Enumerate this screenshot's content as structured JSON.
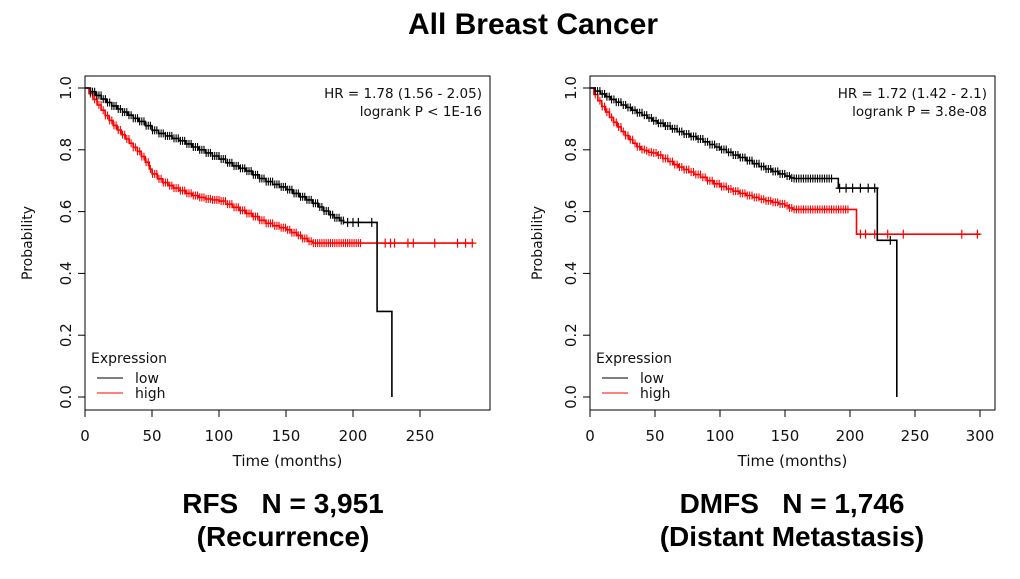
{
  "title": {
    "text": "All Breast Cancer"
  },
  "colors": {
    "low": "#000000",
    "high": "#ff0000",
    "axis": "#000000",
    "annotation": "#1a1a1a"
  },
  "chart_data": [
    {
      "type": "line",
      "subtype": "kaplan-meier-step",
      "caption_line1": "RFS   N = 3,951",
      "caption_line2": "(Recurrence)",
      "xlabel": "Time (months)",
      "ylabel": "Probability",
      "xlim": [
        0,
        302
      ],
      "ylim": [
        0,
        1.0
      ],
      "x_ticks": [
        "0",
        "50",
        "100",
        "150",
        "200",
        "250"
      ],
      "x_tick_values": [
        0,
        50,
        100,
        150,
        200,
        250
      ],
      "y_ticks": [
        "0.0",
        "0.2",
        "0.4",
        "0.6",
        "0.8",
        "1.0"
      ],
      "y_tick_values": [
        0,
        0.2,
        0.4,
        0.6,
        0.8,
        1.0
      ],
      "grid": false,
      "legend_position": "bottom-left",
      "legend_title": "Expression",
      "annotation_line1": "HR = 1.78 (1.56 - 2.05)",
      "annotation_line2": "logrank P < 1E-16",
      "series": [
        {
          "name": "high",
          "color": "#ff0000",
          "steps": [
            [
              0,
              1.0
            ],
            [
              3,
              0.982
            ],
            [
              6,
              0.963
            ],
            [
              9,
              0.945
            ],
            [
              12,
              0.928
            ],
            [
              15,
              0.911
            ],
            [
              18,
              0.895
            ],
            [
              21,
              0.879
            ],
            [
              24,
              0.864
            ],
            [
              27,
              0.849
            ],
            [
              30,
              0.835
            ],
            [
              33,
              0.821
            ],
            [
              36,
              0.808
            ],
            [
              39,
              0.795
            ],
            [
              42,
              0.778
            ],
            [
              45,
              0.76
            ],
            [
              48,
              0.738
            ],
            [
              50,
              0.722
            ],
            [
              54,
              0.706
            ],
            [
              58,
              0.694
            ],
            [
              62,
              0.684
            ],
            [
              66,
              0.676
            ],
            [
              70,
              0.668
            ],
            [
              75,
              0.659
            ],
            [
              80,
              0.652
            ],
            [
              85,
              0.646
            ],
            [
              90,
              0.641
            ],
            [
              95,
              0.638
            ],
            [
              100,
              0.634
            ],
            [
              105,
              0.624
            ],
            [
              110,
              0.614
            ],
            [
              115,
              0.604
            ],
            [
              120,
              0.594
            ],
            [
              125,
              0.584
            ],
            [
              130,
              0.572
            ],
            [
              135,
              0.562
            ],
            [
              140,
              0.554
            ],
            [
              145,
              0.548
            ],
            [
              150,
              0.541
            ],
            [
              154,
              0.532
            ],
            [
              158,
              0.523
            ],
            [
              162,
              0.513
            ],
            [
              166,
              0.504
            ],
            [
              170,
              0.498
            ],
            [
              290,
              0.498
            ]
          ],
          "censor_dense_range": [
            4,
            207,
            1.6
          ],
          "censor_marks": [
            224,
            228,
            231,
            241,
            245,
            261,
            278,
            284,
            289
          ]
        },
        {
          "name": "low",
          "color": "#000000",
          "steps": [
            [
              0,
              1.0
            ],
            [
              4,
              0.988
            ],
            [
              8,
              0.976
            ],
            [
              12,
              0.964
            ],
            [
              16,
              0.953
            ],
            [
              20,
              0.942
            ],
            [
              24,
              0.932
            ],
            [
              28,
              0.922
            ],
            [
              32,
              0.912
            ],
            [
              36,
              0.902
            ],
            [
              40,
              0.892
            ],
            [
              45,
              0.878
            ],
            [
              50,
              0.863
            ],
            [
              55,
              0.853
            ],
            [
              60,
              0.845
            ],
            [
              65,
              0.837
            ],
            [
              70,
              0.829
            ],
            [
              75,
              0.819
            ],
            [
              80,
              0.809
            ],
            [
              85,
              0.8
            ],
            [
              90,
              0.79
            ],
            [
              95,
              0.78
            ],
            [
              100,
              0.77
            ],
            [
              105,
              0.758
            ],
            [
              110,
              0.748
            ],
            [
              115,
              0.74
            ],
            [
              120,
              0.731
            ],
            [
              125,
              0.719
            ],
            [
              130,
              0.707
            ],
            [
              135,
              0.697
            ],
            [
              140,
              0.688
            ],
            [
              145,
              0.68
            ],
            [
              150,
              0.671
            ],
            [
              155,
              0.659
            ],
            [
              160,
              0.648
            ],
            [
              165,
              0.638
            ],
            [
              170,
              0.627
            ],
            [
              174,
              0.615
            ],
            [
              178,
              0.602
            ],
            [
              182,
              0.59
            ],
            [
              186,
              0.58
            ],
            [
              190,
              0.571
            ],
            [
              193,
              0.565
            ],
            [
              218,
              0.565
            ],
            [
              218,
              0.277
            ],
            [
              229,
              0.277
            ],
            [
              229,
              0.0
            ]
          ],
          "censor_dense_range": [
            4,
            193,
            1.6
          ],
          "censor_marks": [
            196,
            200,
            204,
            214
          ]
        }
      ]
    },
    {
      "type": "line",
      "subtype": "kaplan-meier-step",
      "caption_line1": "DMFS   N = 1,746",
      "caption_line2": "(Distant Metastasis)",
      "xlabel": "Time (months)",
      "ylabel": "Probability",
      "xlim": [
        0,
        311
      ],
      "ylim": [
        0,
        1.0
      ],
      "x_ticks": [
        "0",
        "50",
        "100",
        "150",
        "200",
        "250",
        "300"
      ],
      "x_tick_values": [
        0,
        50,
        100,
        150,
        200,
        250,
        300
      ],
      "y_ticks": [
        "0.0",
        "0.2",
        "0.4",
        "0.6",
        "0.8",
        "1.0"
      ],
      "y_tick_values": [
        0,
        0.2,
        0.4,
        0.6,
        0.8,
        1.0
      ],
      "grid": false,
      "legend_position": "bottom-left",
      "legend_title": "Expression",
      "annotation_line1": "HR = 1.72 (1.42 - 2.1)",
      "annotation_line2": "logrank P = 3.8e-08",
      "series": [
        {
          "name": "high",
          "color": "#ff0000",
          "steps": [
            [
              0,
              1.0
            ],
            [
              3,
              0.979
            ],
            [
              6,
              0.959
            ],
            [
              9,
              0.94
            ],
            [
              12,
              0.922
            ],
            [
              15,
              0.905
            ],
            [
              18,
              0.889
            ],
            [
              21,
              0.874
            ],
            [
              24,
              0.859
            ],
            [
              27,
              0.846
            ],
            [
              30,
              0.833
            ],
            [
              33,
              0.821
            ],
            [
              36,
              0.81
            ],
            [
              39,
              0.801
            ],
            [
              42,
              0.797
            ],
            [
              45,
              0.792
            ],
            [
              48,
              0.79
            ],
            [
              52,
              0.783
            ],
            [
              56,
              0.772
            ],
            [
              60,
              0.762
            ],
            [
              64,
              0.752
            ],
            [
              68,
              0.744
            ],
            [
              72,
              0.736
            ],
            [
              76,
              0.728
            ],
            [
              80,
              0.72
            ],
            [
              85,
              0.711
            ],
            [
              90,
              0.7
            ],
            [
              95,
              0.69
            ],
            [
              100,
              0.681
            ],
            [
              105,
              0.673
            ],
            [
              110,
              0.666
            ],
            [
              115,
              0.659
            ],
            [
              120,
              0.652
            ],
            [
              125,
              0.646
            ],
            [
              130,
              0.64
            ],
            [
              135,
              0.635
            ],
            [
              140,
              0.63
            ],
            [
              145,
              0.625
            ],
            [
              150,
              0.619
            ],
            [
              153,
              0.612
            ],
            [
              156,
              0.607
            ],
            [
              205,
              0.607
            ],
            [
              205,
              0.527
            ],
            [
              300,
              0.527
            ]
          ],
          "censor_dense_range": [
            4,
            200,
            1.8
          ],
          "censor_marks": [
            208,
            212,
            219,
            229,
            241,
            286,
            298
          ]
        },
        {
          "name": "low",
          "color": "#000000",
          "steps": [
            [
              0,
              1.0
            ],
            [
              4,
              0.99
            ],
            [
              8,
              0.981
            ],
            [
              12,
              0.972
            ],
            [
              16,
              0.963
            ],
            [
              20,
              0.954
            ],
            [
              24,
              0.945
            ],
            [
              28,
              0.937
            ],
            [
              32,
              0.928
            ],
            [
              36,
              0.92
            ],
            [
              40,
              0.912
            ],
            [
              44,
              0.903
            ],
            [
              48,
              0.894
            ],
            [
              52,
              0.886
            ],
            [
              57,
              0.877
            ],
            [
              62,
              0.868
            ],
            [
              67,
              0.859
            ],
            [
              72,
              0.851
            ],
            [
              77,
              0.843
            ],
            [
              82,
              0.835
            ],
            [
              87,
              0.826
            ],
            [
              92,
              0.817
            ],
            [
              96,
              0.809
            ],
            [
              100,
              0.801
            ],
            [
              105,
              0.792
            ],
            [
              110,
              0.783
            ],
            [
              115,
              0.775
            ],
            [
              120,
              0.765
            ],
            [
              125,
              0.755
            ],
            [
              130,
              0.746
            ],
            [
              135,
              0.738
            ],
            [
              140,
              0.73
            ],
            [
              145,
              0.722
            ],
            [
              150,
              0.715
            ],
            [
              154,
              0.709
            ],
            [
              157,
              0.707
            ],
            [
              188,
              0.707
            ],
            [
              191,
              0.676
            ],
            [
              221,
              0.676
            ],
            [
              221,
              0.507
            ],
            [
              236,
              0.507
            ],
            [
              236,
              0.0
            ]
          ],
          "censor_dense_range": [
            4,
            186,
            1.8
          ],
          "censor_marks": [
            192,
            197,
            202,
            208,
            214,
            219,
            231
          ]
        }
      ]
    }
  ],
  "legend_items": [
    {
      "label": "low",
      "color": "#000000"
    },
    {
      "label": "high",
      "color": "#ff0000"
    }
  ]
}
